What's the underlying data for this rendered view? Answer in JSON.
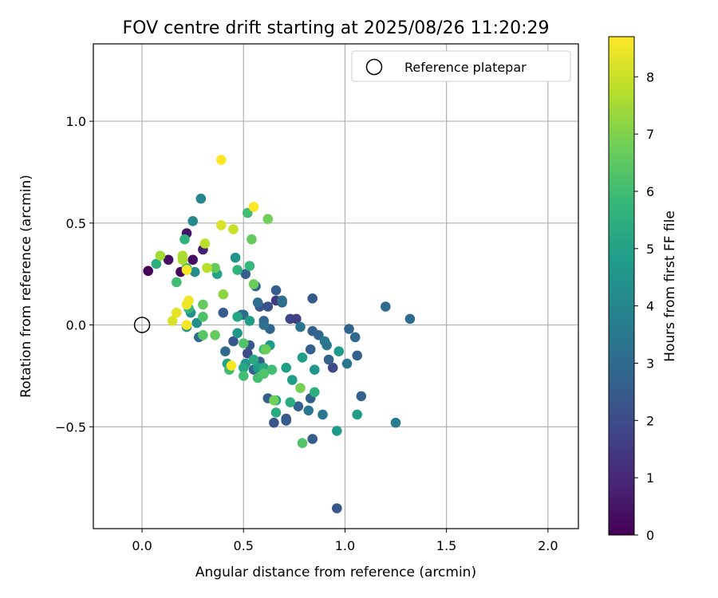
{
  "chart_data": {
    "type": "scatter",
    "title": "FOV centre drift starting at 2025/08/26 11:20:29",
    "xlabel": "Angular distance from reference (arcmin)",
    "ylabel": "Rotation from reference (arcmin)",
    "xlim": [
      -0.24,
      2.15
    ],
    "ylim": [
      -1.0,
      1.38
    ],
    "x_ticks": [
      0.0,
      0.5,
      1.0,
      1.5,
      2.0
    ],
    "x_tick_labels": [
      "0.0",
      "0.5",
      "1.0",
      "1.5",
      "2.0"
    ],
    "y_ticks": [
      -0.5,
      0.0,
      0.5,
      1.0
    ],
    "y_tick_labels": [
      "−0.5",
      "0.0",
      "0.5",
      "1.0"
    ],
    "grid": true,
    "legend": {
      "position": "top-right",
      "entries": [
        {
          "label": "Reference platepar",
          "marker": "open-circle"
        }
      ]
    },
    "reference_point": {
      "x": 0.0,
      "y": 0.0
    },
    "colorbar": {
      "label": "Hours from first FF file",
      "colormap": "viridis",
      "range": [
        0,
        8.7
      ],
      "ticks": [
        0,
        1,
        2,
        3,
        4,
        5,
        6,
        7,
        8
      ],
      "tick_labels": [
        "0",
        "1",
        "2",
        "3",
        "4",
        "5",
        "6",
        "7",
        "8"
      ]
    },
    "colormap_stops": [
      "#440154",
      "#482878",
      "#3e4a89",
      "#31688e",
      "#26828e",
      "#1f9e89",
      "#35b779",
      "#6ece58",
      "#b5de2b",
      "#fde725"
    ],
    "points": [
      {
        "x": 0.03,
        "y": 0.265,
        "h": 0.1
      },
      {
        "x": 0.13,
        "y": 0.32,
        "h": 0.4
      },
      {
        "x": 0.19,
        "y": 0.26,
        "h": 0.2
      },
      {
        "x": 0.22,
        "y": 0.45,
        "h": 0.5
      },
      {
        "x": 0.25,
        "y": 0.32,
        "h": 0.3
      },
      {
        "x": 0.3,
        "y": 0.37,
        "h": 0.8
      },
      {
        "x": 0.66,
        "y": 0.12,
        "h": 1.5
      },
      {
        "x": 0.73,
        "y": 0.03,
        "h": 1.8
      },
      {
        "x": 0.76,
        "y": 0.03,
        "h": 1.7
      },
      {
        "x": 0.94,
        "y": -0.21,
        "h": 1.9
      },
      {
        "x": 0.52,
        "y": -0.14,
        "h": 2.0
      },
      {
        "x": 0.58,
        "y": 0.09,
        "h": 2.3
      },
      {
        "x": 0.62,
        "y": 0.09,
        "h": 2.2
      },
      {
        "x": 0.84,
        "y": 0.13,
        "h": 2.5
      },
      {
        "x": 0.4,
        "y": 0.06,
        "h": 2.5
      },
      {
        "x": 0.45,
        "y": -0.08,
        "h": 2.4
      },
      {
        "x": 0.49,
        "y": 0.05,
        "h": 2.6
      },
      {
        "x": 0.51,
        "y": 0.25,
        "h": 2.6
      },
      {
        "x": 0.56,
        "y": 0.19,
        "h": 2.7
      },
      {
        "x": 0.6,
        "y": 0.02,
        "h": 2.8
      },
      {
        "x": 0.63,
        "y": -0.02,
        "h": 2.8
      },
      {
        "x": 0.66,
        "y": 0.17,
        "h": 2.6
      },
      {
        "x": 0.69,
        "y": 0.11,
        "h": 2.8
      },
      {
        "x": 0.53,
        "y": -0.1,
        "h": 2.4
      },
      {
        "x": 0.55,
        "y": -0.22,
        "h": 2.7
      },
      {
        "x": 0.58,
        "y": -0.18,
        "h": 2.5
      },
      {
        "x": 0.62,
        "y": -0.36,
        "h": 2.6
      },
      {
        "x": 0.65,
        "y": -0.48,
        "h": 2.3
      },
      {
        "x": 0.71,
        "y": -0.46,
        "h": 2.4
      },
      {
        "x": 0.71,
        "y": -0.47,
        "h": 2.5
      },
      {
        "x": 0.77,
        "y": -0.4,
        "h": 2.6
      },
      {
        "x": 0.84,
        "y": -0.56,
        "h": 2.5
      },
      {
        "x": 0.83,
        "y": -0.36,
        "h": 2.7
      },
      {
        "x": 0.83,
        "y": -0.12,
        "h": 2.6
      },
      {
        "x": 0.84,
        "y": -0.03,
        "h": 2.7
      },
      {
        "x": 0.87,
        "y": -0.05,
        "h": 2.8
      },
      {
        "x": 0.92,
        "y": -0.17,
        "h": 2.7
      },
      {
        "x": 0.96,
        "y": -0.9,
        "h": 2.4
      },
      {
        "x": 1.02,
        "y": -0.02,
        "h": 2.8
      },
      {
        "x": 1.05,
        "y": -0.06,
        "h": 2.9
      },
      {
        "x": 1.06,
        "y": -0.15,
        "h": 2.6
      },
      {
        "x": 1.08,
        "y": -0.35,
        "h": 2.7
      },
      {
        "x": 1.2,
        "y": 0.09,
        "h": 3.0
      },
      {
        "x": 1.32,
        "y": 0.03,
        "h": 3.0
      },
      {
        "x": 0.28,
        "y": -0.06,
        "h": 3.0
      },
      {
        "x": 0.41,
        "y": -0.13,
        "h": 3.0
      },
      {
        "x": 0.5,
        "y": 0.05,
        "h": 3.1
      },
      {
        "x": 0.57,
        "y": 0.11,
        "h": 3.1
      },
      {
        "x": 0.6,
        "y": 0.0,
        "h": 3.2
      },
      {
        "x": 0.69,
        "y": 0.12,
        "h": 3.2
      },
      {
        "x": 0.78,
        "y": -0.01,
        "h": 3.3
      },
      {
        "x": 0.82,
        "y": -0.42,
        "h": 3.4
      },
      {
        "x": 0.89,
        "y": -0.44,
        "h": 3.4
      },
      {
        "x": 0.9,
        "y": -0.08,
        "h": 3.5
      },
      {
        "x": 0.91,
        "y": -0.1,
        "h": 3.4
      },
      {
        "x": 1.01,
        "y": -0.19,
        "h": 3.5
      },
      {
        "x": 1.25,
        "y": -0.48,
        "h": 3.6
      },
      {
        "x": 0.29,
        "y": 0.62,
        "h": 4.0
      },
      {
        "x": 0.25,
        "y": 0.51,
        "h": 4.1
      },
      {
        "x": 0.26,
        "y": 0.26,
        "h": 4.2
      },
      {
        "x": 0.24,
        "y": 0.06,
        "h": 4.3
      },
      {
        "x": 0.27,
        "y": 0.01,
        "h": 4.3
      },
      {
        "x": 0.22,
        "y": -0.01,
        "h": 4.4
      },
      {
        "x": 0.46,
        "y": 0.33,
        "h": 4.5
      },
      {
        "x": 0.47,
        "y": -0.04,
        "h": 4.6
      },
      {
        "x": 0.51,
        "y": -0.19,
        "h": 4.5
      },
      {
        "x": 0.53,
        "y": 0.02,
        "h": 4.8
      },
      {
        "x": 0.57,
        "y": -0.21,
        "h": 4.8
      },
      {
        "x": 0.63,
        "y": -0.1,
        "h": 4.7
      },
      {
        "x": 0.66,
        "y": -0.37,
        "h": 4.9
      },
      {
        "x": 0.71,
        "y": -0.21,
        "h": 4.9
      },
      {
        "x": 0.74,
        "y": -0.27,
        "h": 4.8
      },
      {
        "x": 0.79,
        "y": -0.16,
        "h": 4.8
      },
      {
        "x": 0.85,
        "y": -0.22,
        "h": 4.6
      },
      {
        "x": 0.96,
        "y": -0.52,
        "h": 4.7
      },
      {
        "x": 0.97,
        "y": -0.13,
        "h": 4.7
      },
      {
        "x": 1.06,
        "y": -0.44,
        "h": 4.8
      },
      {
        "x": 0.37,
        "y": 0.25,
        "h": 5.0
      },
      {
        "x": 0.42,
        "y": -0.19,
        "h": 5.0
      },
      {
        "x": 0.47,
        "y": 0.04,
        "h": 5.1
      },
      {
        "x": 0.5,
        "y": -0.21,
        "h": 5.2
      },
      {
        "x": 0.55,
        "y": -0.17,
        "h": 5.3
      },
      {
        "x": 0.6,
        "y": -0.21,
        "h": 5.2
      },
      {
        "x": 0.66,
        "y": -0.43,
        "h": 5.3
      },
      {
        "x": 0.73,
        "y": -0.38,
        "h": 5.4
      },
      {
        "x": 0.85,
        "y": -0.33,
        "h": 5.5
      },
      {
        "x": 0.21,
        "y": 0.42,
        "h": 5.6
      },
      {
        "x": 0.23,
        "y": 0.08,
        "h": 5.7
      },
      {
        "x": 0.47,
        "y": 0.27,
        "h": 5.6
      },
      {
        "x": 0.53,
        "y": 0.29,
        "h": 5.8
      },
      {
        "x": 0.6,
        "y": -0.12,
        "h": 5.9
      },
      {
        "x": 0.43,
        "y": -0.22,
        "h": 6.0
      },
      {
        "x": 0.52,
        "y": 0.55,
        "h": 6.0
      },
      {
        "x": 0.5,
        "y": -0.25,
        "h": 6.0
      },
      {
        "x": 0.57,
        "y": -0.26,
        "h": 6.1
      },
      {
        "x": 0.64,
        "y": -0.22,
        "h": 6.0
      },
      {
        "x": 0.79,
        "y": -0.58,
        "h": 6.3
      },
      {
        "x": 0.3,
        "y": 0.04,
        "h": 6.2
      },
      {
        "x": 0.5,
        "y": -0.09,
        "h": 6.3
      },
      {
        "x": 0.6,
        "y": -0.24,
        "h": 6.3
      },
      {
        "x": 0.07,
        "y": 0.3,
        "h": 5.4
      },
      {
        "x": 0.17,
        "y": 0.21,
        "h": 6.0
      },
      {
        "x": 0.22,
        "y": 0.28,
        "h": 6.0
      },
      {
        "x": 0.3,
        "y": -0.05,
        "h": 6.4
      },
      {
        "x": 0.36,
        "y": -0.05,
        "h": 6.6
      },
      {
        "x": 0.3,
        "y": 0.1,
        "h": 6.6
      },
      {
        "x": 0.36,
        "y": 0.28,
        "h": 6.6
      },
      {
        "x": 0.54,
        "y": 0.42,
        "h": 6.6
      },
      {
        "x": 0.61,
        "y": -0.12,
        "h": 6.7
      },
      {
        "x": 0.55,
        "y": 0.2,
        "h": 6.7
      },
      {
        "x": 0.62,
        "y": 0.52,
        "h": 6.8
      },
      {
        "x": 0.65,
        "y": -0.37,
        "h": 6.8
      },
      {
        "x": 0.78,
        "y": -0.31,
        "h": 6.9
      },
      {
        "x": 0.4,
        "y": 0.15,
        "h": 7.2
      },
      {
        "x": 0.09,
        "y": 0.34,
        "h": 7.5
      },
      {
        "x": 0.2,
        "y": 0.34,
        "h": 7.6
      },
      {
        "x": 0.2,
        "y": 0.32,
        "h": 7.6
      },
      {
        "x": 0.32,
        "y": 0.28,
        "h": 7.8
      },
      {
        "x": 0.31,
        "y": 0.4,
        "h": 7.8
      },
      {
        "x": 0.45,
        "y": 0.47,
        "h": 8.0
      },
      {
        "x": 0.39,
        "y": 0.49,
        "h": 8.2
      },
      {
        "x": 0.15,
        "y": 0.02,
        "h": 8.2
      },
      {
        "x": 0.17,
        "y": 0.06,
        "h": 8.4
      },
      {
        "x": 0.22,
        "y": 0.1,
        "h": 8.5
      },
      {
        "x": 0.23,
        "y": 0.12,
        "h": 8.5
      },
      {
        "x": 0.22,
        "y": 0.0,
        "h": 8.6
      },
      {
        "x": 0.22,
        "y": 0.27,
        "h": 8.6
      },
      {
        "x": 0.44,
        "y": -0.2,
        "h": 8.6
      },
      {
        "x": 0.39,
        "y": 0.81,
        "h": 8.7
      },
      {
        "x": 0.55,
        "y": 0.58,
        "h": 8.7
      }
    ]
  }
}
